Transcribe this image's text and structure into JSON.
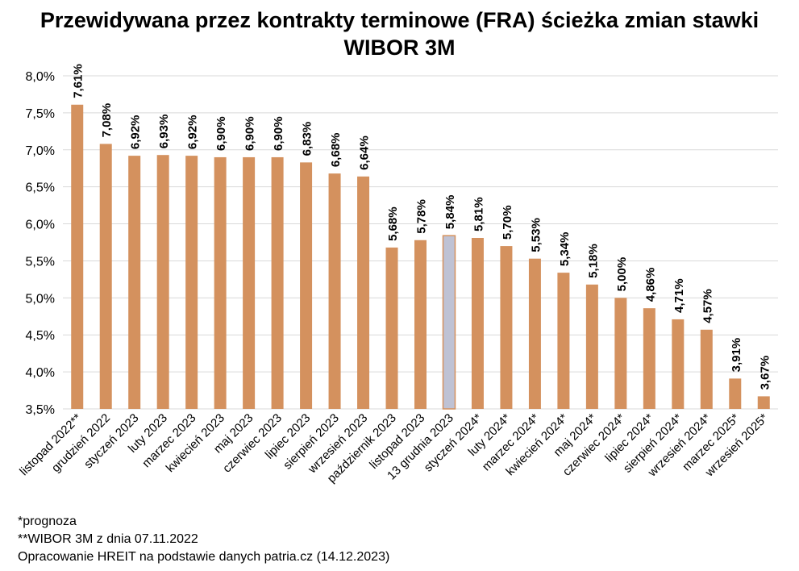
{
  "title_line1": "Przewidywana przez kontrakty terminowe (FRA) ścieżka zmian stawki",
  "title_line2": "WIBOR 3M",
  "chart_data": {
    "type": "bar",
    "title": "Przewidywana przez kontrakty terminowe (FRA) ścieżka zmian stawki WIBOR 3M",
    "xlabel": "",
    "ylabel": "",
    "ylim": [
      3.5,
      8.0
    ],
    "y_ticks": [
      3.5,
      4.0,
      4.5,
      5.0,
      5.5,
      6.0,
      6.5,
      7.0,
      7.5,
      8.0
    ],
    "y_tick_labels": [
      "3,5%",
      "4,0%",
      "4,5%",
      "5,0%",
      "5,5%",
      "6,0%",
      "6,5%",
      "7,0%",
      "7,5%",
      "8,0%"
    ],
    "grid": true,
    "legend": "none",
    "bar_color": "#D4915E",
    "highlight_color": "#BFC2D4",
    "highlight_index": 13,
    "categories": [
      "listopad 2022**",
      "grudzień 2022",
      "styczeń 2023",
      "luty 2023",
      "marzec 2023",
      "kwiecień 2023",
      "maj 2023",
      "czerwiec 2023",
      "lipiec 2023",
      "sierpień 2023",
      "wrzesień 2023",
      "październik 2023",
      "listopad 2023",
      "13 grudnia 2023",
      "styczeń 2024*",
      "luty 2024*",
      "marzec 2024*",
      "kwiecień 2024*",
      "maj 2024*",
      "czerwiec 2024*",
      "lipiec 2024*",
      "sierpień 2024*",
      "wrzesień 2024*",
      "marzec 2025*",
      "wrzesień 2025*"
    ],
    "values": [
      7.61,
      7.08,
      6.92,
      6.93,
      6.92,
      6.9,
      6.9,
      6.9,
      6.83,
      6.68,
      6.64,
      5.68,
      5.78,
      5.84,
      5.81,
      5.7,
      5.53,
      5.34,
      5.18,
      5.0,
      4.86,
      4.71,
      4.57,
      3.91,
      3.67
    ],
    "data_labels": [
      "7,61%",
      "7,08%",
      "6,92%",
      "6,93%",
      "6,92%",
      "6,90%",
      "6,90%",
      "6,90%",
      "6,83%",
      "6,68%",
      "6,64%",
      "5,68%",
      "5,78%",
      "5,84%",
      "5,81%",
      "5,70%",
      "5,53%",
      "5,34%",
      "5,18%",
      "5,00%",
      "4,86%",
      "4,71%",
      "4,57%",
      "3,91%",
      "3,67%"
    ]
  },
  "footnotes": {
    "forecast": "*prognoza",
    "wibor_date": "**WIBOR 3M z dnia 07.11.2022",
    "source": "Opracowanie HREIT na podstawie danych patria.cz (14.12.2023)"
  }
}
